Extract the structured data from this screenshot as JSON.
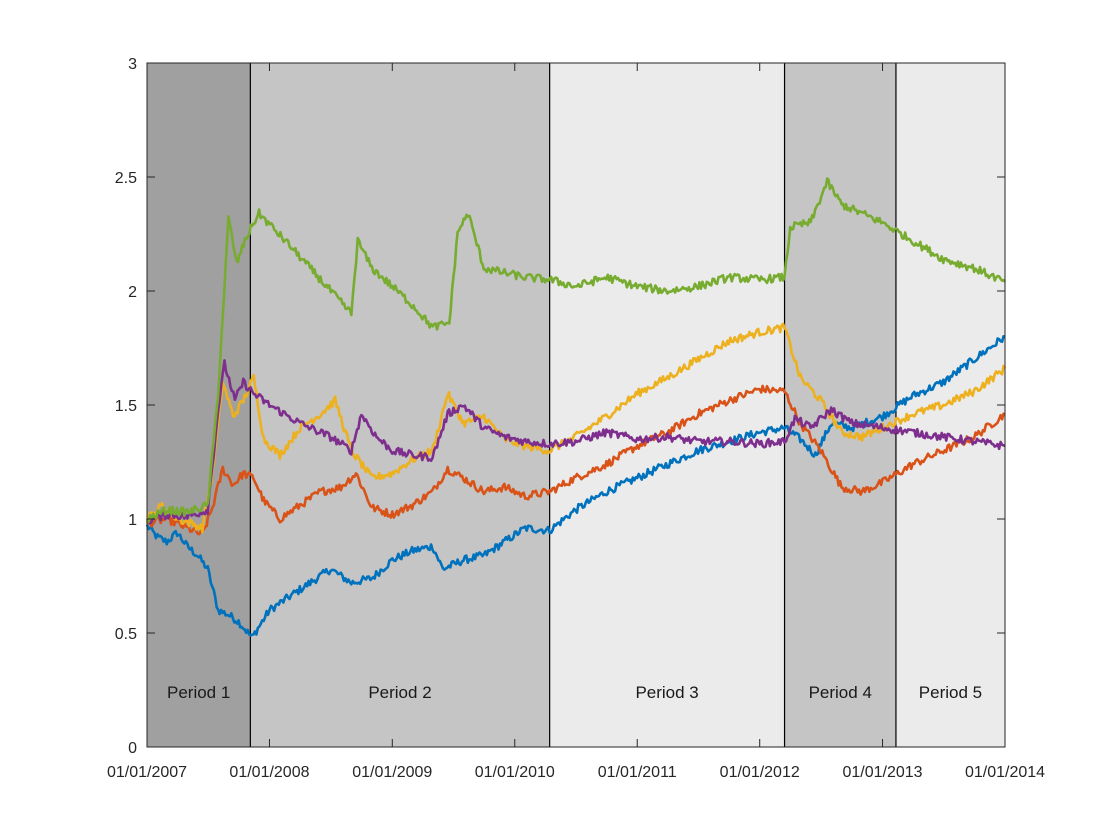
{
  "chart_data": {
    "type": "line",
    "title": "",
    "xlabel": "",
    "ylabel": "",
    "xlim": [
      "2007-01-01",
      "2014-01-01"
    ],
    "ylim": [
      0,
      3
    ],
    "grid": false,
    "x_ticks": [
      "01/01/2007",
      "01/01/2008",
      "01/01/2009",
      "01/01/2010",
      "01/01/2011",
      "01/01/2012",
      "01/01/2013",
      "01/01/2014"
    ],
    "y_ticks": [
      "0",
      "0.5",
      "1",
      "1.5",
      "2",
      "2.5",
      "3"
    ],
    "periods": [
      {
        "label": "Period 1",
        "start": "2007-01-01",
        "end": "2007-11-05",
        "color": "#a0a0a0"
      },
      {
        "label": "Period 2",
        "start": "2007-11-05",
        "end": "2010-04-15",
        "color": "#c5c5c5"
      },
      {
        "label": "Period 3",
        "start": "2010-04-15",
        "end": "2012-03-15",
        "color": "#ebebeb"
      },
      {
        "label": "Period 4",
        "start": "2012-03-15",
        "end": "2013-02-10",
        "color": "#c5c5c5"
      },
      {
        "label": "Period 5",
        "start": "2013-02-10",
        "end": "2014-01-01",
        "color": "#ebebeb"
      }
    ],
    "series": [
      {
        "color": "#0072bd",
        "points": [
          [
            "2007-01-01",
            0.97
          ],
          [
            "2007-02-01",
            0.92
          ],
          [
            "2007-03-01",
            0.9
          ],
          [
            "2007-04-01",
            0.94
          ],
          [
            "2007-05-01",
            0.88
          ],
          [
            "2007-06-01",
            0.84
          ],
          [
            "2007-07-01",
            0.78
          ],
          [
            "2007-08-01",
            0.6
          ],
          [
            "2007-09-01",
            0.58
          ],
          [
            "2007-10-01",
            0.55
          ],
          [
            "2007-11-10",
            0.48
          ],
          [
            "2008-01-01",
            0.6
          ],
          [
            "2008-03-01",
            0.66
          ],
          [
            "2008-05-01",
            0.72
          ],
          [
            "2008-07-01",
            0.78
          ],
          [
            "2008-09-01",
            0.72
          ],
          [
            "2008-11-01",
            0.74
          ],
          [
            "2009-01-01",
            0.82
          ],
          [
            "2009-03-01",
            0.86
          ],
          [
            "2009-05-01",
            0.88
          ],
          [
            "2009-06-01",
            0.78
          ],
          [
            "2009-08-01",
            0.82
          ],
          [
            "2009-10-01",
            0.84
          ],
          [
            "2009-12-01",
            0.9
          ],
          [
            "2010-02-01",
            0.96
          ],
          [
            "2010-04-15",
            0.95
          ],
          [
            "2010-07-01",
            1.04
          ],
          [
            "2010-10-01",
            1.12
          ],
          [
            "2011-01-01",
            1.18
          ],
          [
            "2011-04-01",
            1.24
          ],
          [
            "2011-07-01",
            1.3
          ],
          [
            "2011-10-01",
            1.34
          ],
          [
            "2012-01-01",
            1.38
          ],
          [
            "2012-03-15",
            1.4
          ],
          [
            "2012-05-01",
            1.35
          ],
          [
            "2012-06-15",
            1.28
          ],
          [
            "2012-08-01",
            1.42
          ],
          [
            "2012-10-01",
            1.4
          ],
          [
            "2013-01-01",
            1.45
          ],
          [
            "2013-04-01",
            1.54
          ],
          [
            "2013-07-01",
            1.6
          ],
          [
            "2013-10-01",
            1.7
          ],
          [
            "2014-01-01",
            1.8
          ]
        ]
      },
      {
        "color": "#d95319",
        "points": [
          [
            "2007-01-01",
            0.98
          ],
          [
            "2007-03-01",
            1.0
          ],
          [
            "2007-05-01",
            0.96
          ],
          [
            "2007-06-15",
            0.93
          ],
          [
            "2007-07-15",
            1.05
          ],
          [
            "2007-08-15",
            1.22
          ],
          [
            "2007-09-15",
            1.15
          ],
          [
            "2007-10-15",
            1.2
          ],
          [
            "2007-11-15",
            1.18
          ],
          [
            "2007-12-15",
            1.08
          ],
          [
            "2008-02-01",
            1.0
          ],
          [
            "2008-04-01",
            1.06
          ],
          [
            "2008-06-01",
            1.12
          ],
          [
            "2008-08-01",
            1.14
          ],
          [
            "2008-09-15",
            1.2
          ],
          [
            "2008-11-01",
            1.05
          ],
          [
            "2009-01-01",
            1.02
          ],
          [
            "2009-03-01",
            1.06
          ],
          [
            "2009-05-01",
            1.12
          ],
          [
            "2009-06-15",
            1.22
          ],
          [
            "2009-08-01",
            1.18
          ],
          [
            "2009-10-01",
            1.12
          ],
          [
            "2009-12-01",
            1.14
          ],
          [
            "2010-02-01",
            1.1
          ],
          [
            "2010-04-15",
            1.12
          ],
          [
            "2010-07-01",
            1.18
          ],
          [
            "2010-10-01",
            1.24
          ],
          [
            "2011-01-01",
            1.32
          ],
          [
            "2011-04-01",
            1.38
          ],
          [
            "2011-07-01",
            1.46
          ],
          [
            "2011-10-01",
            1.52
          ],
          [
            "2012-01-01",
            1.57
          ],
          [
            "2012-03-15",
            1.56
          ],
          [
            "2012-05-01",
            1.42
          ],
          [
            "2012-07-01",
            1.3
          ],
          [
            "2012-09-01",
            1.14
          ],
          [
            "2012-11-01",
            1.12
          ],
          [
            "2013-01-01",
            1.16
          ],
          [
            "2013-04-01",
            1.24
          ],
          [
            "2013-07-01",
            1.3
          ],
          [
            "2013-10-01",
            1.36
          ],
          [
            "2014-01-01",
            1.46
          ]
        ]
      },
      {
        "color": "#edb120",
        "points": [
          [
            "2007-01-01",
            1.0
          ],
          [
            "2007-02-15",
            1.06
          ],
          [
            "2007-04-01",
            1.0
          ],
          [
            "2007-05-15",
            0.98
          ],
          [
            "2007-06-15",
            0.96
          ],
          [
            "2007-07-15",
            1.2
          ],
          [
            "2007-08-15",
            1.6
          ],
          [
            "2007-09-15",
            1.45
          ],
          [
            "2007-10-15",
            1.52
          ],
          [
            "2007-11-15",
            1.62
          ],
          [
            "2007-12-15",
            1.35
          ],
          [
            "2008-02-01",
            1.28
          ],
          [
            "2008-04-01",
            1.4
          ],
          [
            "2008-06-01",
            1.46
          ],
          [
            "2008-07-15",
            1.52
          ],
          [
            "2008-09-01",
            1.3
          ],
          [
            "2008-11-01",
            1.18
          ],
          [
            "2009-01-01",
            1.2
          ],
          [
            "2009-03-01",
            1.26
          ],
          [
            "2009-05-01",
            1.3
          ],
          [
            "2009-06-15",
            1.55
          ],
          [
            "2009-08-01",
            1.42
          ],
          [
            "2009-10-01",
            1.45
          ],
          [
            "2009-12-01",
            1.35
          ],
          [
            "2010-02-01",
            1.32
          ],
          [
            "2010-04-15",
            1.3
          ],
          [
            "2010-07-01",
            1.36
          ],
          [
            "2010-10-01",
            1.45
          ],
          [
            "2011-01-01",
            1.55
          ],
          [
            "2011-04-01",
            1.62
          ],
          [
            "2011-07-01",
            1.7
          ],
          [
            "2011-10-01",
            1.78
          ],
          [
            "2012-01-01",
            1.82
          ],
          [
            "2012-03-15",
            1.84
          ],
          [
            "2012-05-01",
            1.62
          ],
          [
            "2012-07-01",
            1.52
          ],
          [
            "2012-09-01",
            1.38
          ],
          [
            "2012-11-01",
            1.36
          ],
          [
            "2013-01-01",
            1.4
          ],
          [
            "2013-04-01",
            1.46
          ],
          [
            "2013-07-01",
            1.5
          ],
          [
            "2013-10-01",
            1.56
          ],
          [
            "2014-01-01",
            1.66
          ]
        ]
      },
      {
        "color": "#7e2f8e",
        "points": [
          [
            "2007-01-01",
            0.99
          ],
          [
            "2007-03-01",
            1.02
          ],
          [
            "2007-05-01",
            1.01
          ],
          [
            "2007-07-01",
            1.04
          ],
          [
            "2007-08-01",
            1.48
          ],
          [
            "2007-08-20",
            1.68
          ],
          [
            "2007-09-20",
            1.52
          ],
          [
            "2007-10-15",
            1.6
          ],
          [
            "2007-11-15",
            1.55
          ],
          [
            "2008-01-01",
            1.5
          ],
          [
            "2008-04-01",
            1.42
          ],
          [
            "2008-07-01",
            1.36
          ],
          [
            "2008-09-01",
            1.3
          ],
          [
            "2008-10-01",
            1.46
          ],
          [
            "2008-11-15",
            1.36
          ],
          [
            "2009-01-01",
            1.3
          ],
          [
            "2009-03-01",
            1.28
          ],
          [
            "2009-05-01",
            1.27
          ],
          [
            "2009-06-15",
            1.46
          ],
          [
            "2009-08-01",
            1.5
          ],
          [
            "2009-10-01",
            1.4
          ],
          [
            "2009-12-01",
            1.36
          ],
          [
            "2010-02-01",
            1.34
          ],
          [
            "2010-04-15",
            1.33
          ],
          [
            "2010-07-01",
            1.34
          ],
          [
            "2010-10-01",
            1.38
          ],
          [
            "2011-01-01",
            1.35
          ],
          [
            "2011-04-01",
            1.36
          ],
          [
            "2011-07-01",
            1.34
          ],
          [
            "2011-10-01",
            1.34
          ],
          [
            "2012-01-01",
            1.33
          ],
          [
            "2012-03-15",
            1.34
          ],
          [
            "2012-04-15",
            1.44
          ],
          [
            "2012-06-01",
            1.4
          ],
          [
            "2012-08-01",
            1.48
          ],
          [
            "2012-10-01",
            1.42
          ],
          [
            "2013-01-01",
            1.4
          ],
          [
            "2013-04-01",
            1.38
          ],
          [
            "2013-07-01",
            1.36
          ],
          [
            "2013-10-01",
            1.34
          ],
          [
            "2014-01-01",
            1.32
          ]
        ]
      },
      {
        "color": "#77ac30",
        "points": [
          [
            "2007-01-01",
            1.0
          ],
          [
            "2007-03-01",
            1.04
          ],
          [
            "2007-05-01",
            1.03
          ],
          [
            "2007-07-01",
            1.06
          ],
          [
            "2007-08-01",
            1.55
          ],
          [
            "2007-09-01",
            2.32
          ],
          [
            "2007-09-25",
            2.12
          ],
          [
            "2007-10-20",
            2.22
          ],
          [
            "2007-11-15",
            2.3
          ],
          [
            "2007-12-01",
            2.34
          ],
          [
            "2008-03-01",
            2.2
          ],
          [
            "2008-06-01",
            2.05
          ],
          [
            "2008-09-01",
            1.9
          ],
          [
            "2008-09-20",
            2.22
          ],
          [
            "2008-11-01",
            2.1
          ],
          [
            "2009-01-01",
            2.02
          ],
          [
            "2009-03-01",
            1.94
          ],
          [
            "2009-05-01",
            1.84
          ],
          [
            "2009-06-20",
            1.86
          ],
          [
            "2009-07-15",
            2.26
          ],
          [
            "2009-08-15",
            2.34
          ],
          [
            "2009-10-01",
            2.1
          ],
          [
            "2009-12-01",
            2.08
          ],
          [
            "2010-02-01",
            2.06
          ],
          [
            "2010-04-15",
            2.05
          ],
          [
            "2010-07-01",
            2.02
          ],
          [
            "2010-10-01",
            2.06
          ],
          [
            "2011-01-01",
            2.02
          ],
          [
            "2011-04-01",
            2.0
          ],
          [
            "2011-07-01",
            2.02
          ],
          [
            "2011-10-01",
            2.06
          ],
          [
            "2012-01-01",
            2.05
          ],
          [
            "2012-03-15",
            2.06
          ],
          [
            "2012-04-01",
            2.28
          ],
          [
            "2012-06-01",
            2.3
          ],
          [
            "2012-07-20",
            2.48
          ],
          [
            "2012-09-01",
            2.38
          ],
          [
            "2012-11-01",
            2.34
          ],
          [
            "2013-01-01",
            2.3
          ],
          [
            "2013-04-01",
            2.22
          ],
          [
            "2013-07-01",
            2.14
          ],
          [
            "2013-10-01",
            2.1
          ],
          [
            "2014-01-01",
            2.04
          ]
        ]
      }
    ]
  }
}
